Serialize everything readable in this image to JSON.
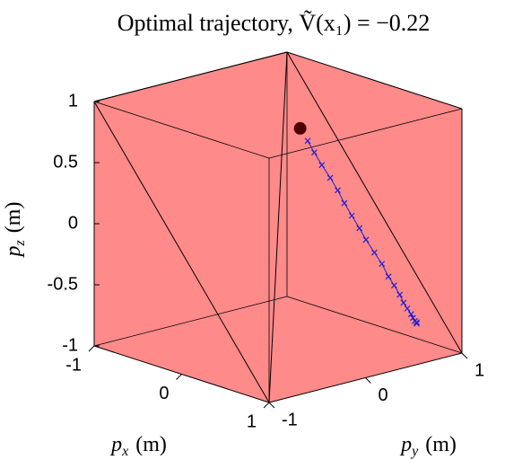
{
  "chart_data": {
    "type": "line3d",
    "title": "Optimal trajectory, Ṽ(x₁) = −0.22",
    "xlabel": {
      "var": "p",
      "sub": "x",
      "unit": "(m)"
    },
    "ylabel": {
      "var": "p",
      "sub": "y",
      "unit": "(m)"
    },
    "zlabel": {
      "var": "p",
      "sub": "z",
      "unit": "(m)"
    },
    "xlim": [
      -1,
      1
    ],
    "ylim": [
      -1,
      1
    ],
    "zlim": [
      -1,
      1
    ],
    "xticks": [
      -1,
      0,
      1
    ],
    "yticks": [
      -1,
      0,
      1
    ],
    "zticks": [
      -1,
      -0.5,
      0,
      0.5,
      1
    ],
    "box_color": "#ff8a8a",
    "start": {
      "x": 0.33,
      "y": -0.07,
      "z": 0.9,
      "color": "#4a0000"
    },
    "series": [
      {
        "color": "#2020d0",
        "x": [
          0.35,
          0.37,
          0.39,
          0.42,
          0.44,
          0.46,
          0.48,
          0.5,
          0.52,
          0.55,
          0.57,
          0.59,
          0.6,
          0.62,
          0.63,
          0.64,
          0.65,
          0.66,
          0.66,
          0.67,
          0.67
        ],
        "y": [
          -0.01,
          0.04,
          0.1,
          0.16,
          0.22,
          0.27,
          0.33,
          0.39,
          0.44,
          0.5,
          0.56,
          0.61,
          0.66,
          0.7,
          0.73,
          0.76,
          0.79,
          0.8,
          0.82,
          0.83,
          0.83
        ],
        "z": [
          0.79,
          0.69,
          0.58,
          0.47,
          0.36,
          0.25,
          0.14,
          0.03,
          -0.07,
          -0.18,
          -0.28,
          -0.39,
          -0.47,
          -0.55,
          -0.62,
          -0.67,
          -0.72,
          -0.75,
          -0.78,
          -0.79,
          -0.8
        ]
      }
    ]
  }
}
